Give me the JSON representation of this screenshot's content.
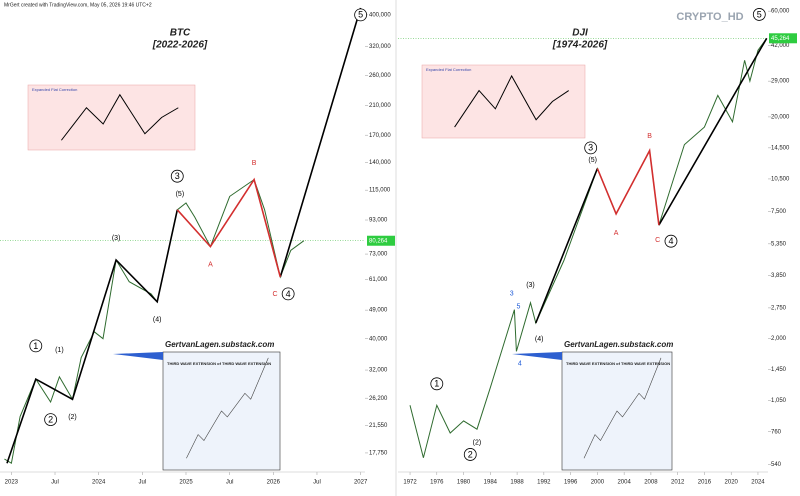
{
  "header": "MrGert created with TradingView.com, May 05, 2026 19:46 UTC+2",
  "watermark": "CRYPTO_HD",
  "chart_data": [
    {
      "type": "line",
      "title": "BTC",
      "subtitle": "[2022-2026]",
      "log_scale": true,
      "xlim": [
        2022.87,
        2027.05
      ],
      "ylim": [
        15500,
        420000
      ],
      "xticks": [
        {
          "value": 2023,
          "label": "2023"
        },
        {
          "value": 2023.5,
          "label": "Jul"
        },
        {
          "value": 2024,
          "label": "2024"
        },
        {
          "value": 2024.5,
          "label": "Jul"
        },
        {
          "value": 2025,
          "label": "2025"
        },
        {
          "value": 2025.5,
          "label": "Jul"
        },
        {
          "value": 2026,
          "label": "2026"
        },
        {
          "value": 2026.5,
          "label": "Jul"
        },
        {
          "value": 2027,
          "label": "2027"
        }
      ],
      "yticks": [
        {
          "value": 400000,
          "label": "400,000"
        },
        {
          "value": 320000,
          "label": "320,000"
        },
        {
          "value": 260000,
          "label": "260,000"
        },
        {
          "value": 210000,
          "label": "210,000"
        },
        {
          "value": 170000,
          "label": "170,000"
        },
        {
          "value": 140000,
          "label": "140,000"
        },
        {
          "value": 115000,
          "label": "115,000"
        },
        {
          "value": 93000,
          "label": "93,000"
        },
        {
          "value": 73000,
          "label": "73,000"
        },
        {
          "value": 61000,
          "label": "61,000"
        },
        {
          "value": 49000,
          "label": "49,000"
        },
        {
          "value": 40000,
          "label": "40,000"
        },
        {
          "value": 32000,
          "label": "32,000"
        },
        {
          "value": 26200,
          "label": "26,200"
        },
        {
          "value": 21550,
          "label": "21,550"
        },
        {
          "value": 17750,
          "label": "17,750"
        }
      ],
      "series": [
        {
          "color": "#2f6b2f",
          "x": [
            2022.92,
            2023.0,
            2023.1,
            2023.28,
            2023.45,
            2023.55,
            2023.7,
            2023.8,
            2023.95,
            2024.05,
            2024.2,
            2024.35,
            2024.6,
            2024.67,
            2024.9,
            2025.0,
            2025.1,
            2025.28,
            2025.5,
            2025.78,
            2025.9,
            2026.08,
            2026.2,
            2026.35
          ],
          "values": [
            17000,
            16500,
            23000,
            30000,
            25500,
            30500,
            26000,
            35000,
            42000,
            40000,
            70000,
            60000,
            55000,
            52000,
            100000,
            105000,
            95000,
            77000,
            110000,
            124000,
            100000,
            62000,
            75000,
            80264
          ]
        },
        {
          "color": "#000000",
          "x": [
            2022.95,
            2023.28,
            2023.7,
            2024.2,
            2024.67,
            2024.9,
            2025.0,
            2026.08,
            2027.0
          ],
          "values": [
            16500,
            30000,
            26000,
            70000,
            52000,
            100000,
            null,
            62000,
            420000
          ]
        },
        {
          "color": "#d32f2f",
          "x": [
            2024.9,
            2025.28,
            2025.78,
            2026.08
          ],
          "values": [
            100000,
            77000,
            124000,
            62000
          ]
        }
      ],
      "last_price": 80264,
      "last_price_label": "80,264",
      "annotations": [
        {
          "text": "1",
          "x": 2023.28,
          "y": 38000,
          "color": "#000000",
          "circle": true
        },
        {
          "text": "(1)",
          "x": 2023.55,
          "y": 37000,
          "color": "#000000",
          "circle": false
        },
        {
          "text": "2",
          "x": 2023.45,
          "y": 22500,
          "color": "#000000",
          "circle": true
        },
        {
          "text": "(2)",
          "x": 2023.7,
          "y": 23000,
          "color": "#000000",
          "circle": false
        },
        {
          "text": "(3)",
          "x": 2024.2,
          "y": 82000,
          "color": "#000000",
          "circle": false
        },
        {
          "text": "(4)",
          "x": 2024.67,
          "y": 46000,
          "color": "#000000",
          "circle": false
        },
        {
          "text": "3",
          "x": 2024.9,
          "y": 127000,
          "color": "#000000",
          "circle": true
        },
        {
          "text": "(5)",
          "x": 2024.93,
          "y": 112000,
          "color": "#000000",
          "circle": false
        },
        {
          "text": "A",
          "x": 2025.28,
          "y": 68000,
          "color": "#d32f2f",
          "circle": false
        },
        {
          "text": "B",
          "x": 2025.78,
          "y": 140000,
          "color": "#d32f2f",
          "circle": false
        },
        {
          "text": "C",
          "x": 2026.02,
          "y": 55000,
          "color": "#d32f2f",
          "circle": false
        },
        {
          "text": "4",
          "x": 2026.17,
          "y": 55000,
          "color": "#000000",
          "circle": true
        },
        {
          "text": "5",
          "x": 2027.0,
          "y": 400000,
          "color": "#000000",
          "circle": true
        }
      ],
      "insets": [
        {
          "title": "Expanded Flat Correction"
        },
        {
          "title": "GertvanLagen.substack.com",
          "subtitle": "THIRD WAVE EXTENSION of THIRD WAVE EXTENSION"
        }
      ]
    },
    {
      "type": "line",
      "title": "DJI",
      "subtitle": "[1974-2026]",
      "log_scale": true,
      "xlim": [
        1970.2,
        2025.5
      ],
      "ylim": [
        500,
        62000
      ],
      "xticks": [
        1972,
        1976,
        1980,
        1984,
        1988,
        1992,
        1996,
        2000,
        2004,
        2008,
        2012,
        2016,
        2020,
        2024
      ],
      "yticks": [
        {
          "value": 60000,
          "label": "60,000"
        },
        {
          "value": 42000,
          "label": "42,000"
        },
        {
          "value": 29000,
          "label": "29,000"
        },
        {
          "value": 20000,
          "label": "20,000"
        },
        {
          "value": 14500,
          "label": "14,500"
        },
        {
          "value": 10500,
          "label": "10,500"
        },
        {
          "value": 7500,
          "label": "7,500"
        },
        {
          "value": 5350,
          "label": "5,350"
        },
        {
          "value": 3850,
          "label": "3,850"
        },
        {
          "value": 2750,
          "label": "2,750"
        },
        {
          "value": 2000,
          "label": "2,000"
        },
        {
          "value": 1450,
          "label": "1,450"
        },
        {
          "value": 1050,
          "label": "1,050"
        },
        760,
        540
      ],
      "series": [
        {
          "color": "#2f6b2f",
          "x": [
            1972,
            1974,
            1976,
            1978,
            1980,
            1982,
            1984,
            1987.6,
            1987.9,
            1990,
            1990.8,
            1995,
            2000,
            2002.8,
            2007.8,
            2009.2,
            2013,
            2016,
            2018,
            2020.2,
            2022,
            2022.8,
            2024,
            2025.3
          ],
          "values": [
            1000,
            580,
            1000,
            750,
            850,
            780,
            1200,
            2700,
            1750,
            2900,
            2350,
            4500,
            11700,
            7300,
            14100,
            6500,
            15000,
            18000,
            25000,
            19000,
            36000,
            29000,
            40000,
            45264
          ]
        },
        {
          "color": "#000000",
          "x": [
            1990.8,
            2000,
            2005,
            2009.2,
            2025.3
          ],
          "values": [
            2350,
            11700,
            null,
            6500,
            45264
          ]
        },
        {
          "color": "#d32f2f",
          "x": [
            2000,
            2002.8,
            2007.8,
            2009.2
          ],
          "values": [
            11700,
            7300,
            14100,
            6500
          ]
        }
      ],
      "last_price": 45264,
      "last_price_label": "45,264",
      "annotations": [
        {
          "text": "1",
          "x": 1976,
          "y": 1250,
          "color": "#000000",
          "circle": true
        },
        {
          "text": "2",
          "x": 1981,
          "y": 600,
          "color": "#000000",
          "circle": true
        },
        {
          "text": "(2)",
          "x": 1982,
          "y": 680,
          "color": "#000000",
          "circle": false
        },
        {
          "text": "3",
          "x": 1987.2,
          "y": 3200,
          "color": "#1e5bd8",
          "circle": false
        },
        {
          "text": "5",
          "x": 1988.2,
          "y": 2800,
          "color": "#1e5bd8",
          "circle": false
        },
        {
          "text": "4",
          "x": 1988.4,
          "y": 1550,
          "color": "#1e5bd8",
          "circle": false
        },
        {
          "text": "(3)",
          "x": 1990,
          "y": 3500,
          "color": "#000000",
          "circle": false
        },
        {
          "text": "(4)",
          "x": 1991.3,
          "y": 2000,
          "color": "#000000",
          "circle": false
        },
        {
          "text": "3",
          "x": 1999,
          "y": 14500,
          "color": "#000000",
          "circle": true
        },
        {
          "text": "(5)",
          "x": 1999.3,
          "y": 12800,
          "color": "#000000",
          "circle": false
        },
        {
          "text": "A",
          "x": 2002.8,
          "y": 6000,
          "color": "#d32f2f",
          "circle": false
        },
        {
          "text": "B",
          "x": 2007.8,
          "y": 16500,
          "color": "#d32f2f",
          "circle": false
        },
        {
          "text": "C",
          "x": 2009,
          "y": 5600,
          "color": "#d32f2f",
          "circle": false
        },
        {
          "text": "4",
          "x": 2011,
          "y": 5500,
          "color": "#000000",
          "circle": true
        },
        {
          "text": "5",
          "x": 2024.2,
          "y": 58000,
          "color": "#000000",
          "circle": true
        }
      ],
      "insets": [
        {
          "title": "Expanded Flat Correction"
        },
        {
          "title": "GertvanLagen.substack.com",
          "subtitle": "THIRD WAVE EXTENSION of THIRD WAVE EXTENSION"
        }
      ]
    }
  ]
}
